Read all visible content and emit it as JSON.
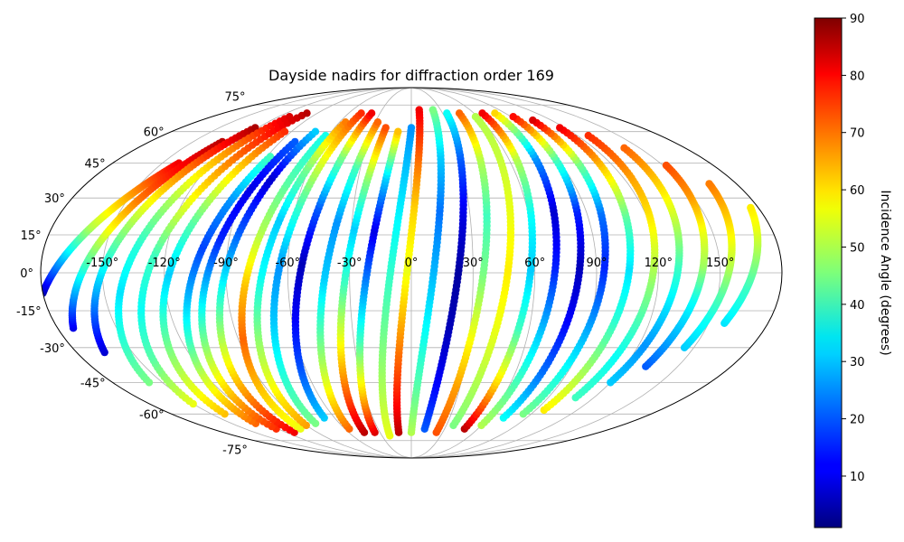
{
  "chart_data": {
    "type": "scatter",
    "projection": "mollweide",
    "title": "Dayside nadirs for diffraction order 169",
    "x_ticks": [
      "-150°",
      "-120°",
      "-90°",
      "-60°",
      "-30°",
      "0°",
      "30°",
      "60°",
      "90°",
      "120°",
      "150°"
    ],
    "x_tick_values": [
      -150,
      -120,
      -90,
      -60,
      -30,
      0,
      30,
      60,
      90,
      120,
      150
    ],
    "y_ticks": [
      "-75°",
      "-60°",
      "-45°",
      "-30°",
      "-15°",
      "0°",
      "15°",
      "30°",
      "45°",
      "60°",
      "75°"
    ],
    "y_tick_values": [
      -75,
      -60,
      -45,
      -30,
      -15,
      0,
      15,
      30,
      45,
      60,
      75
    ],
    "grid": true,
    "colormap": "jet",
    "colorbar": {
      "label": "Incidence Angle (degrees)",
      "min": 1,
      "max": 90,
      "ticks": [
        "10",
        "20",
        "30",
        "40",
        "50",
        "60",
        "70",
        "80",
        "90"
      ],
      "tick_values": [
        10,
        20,
        30,
        40,
        50,
        60,
        70,
        80,
        90
      ]
    },
    "lat_range": [
      -72,
      72
    ],
    "series": [
      {
        "lon0": -180,
        "lat0": -8,
        "lon1": -140,
        "lat1": 45,
        "angles": [
          5,
          20,
          35,
          50,
          60,
          70,
          80
        ]
      },
      {
        "lon0": -172,
        "lat0": -22,
        "lon1": -130,
        "lat1": 55,
        "angles": [
          10,
          25,
          40,
          55,
          68,
          78,
          85
        ]
      },
      {
        "lon0": -165,
        "lat0": -32,
        "lon1": -122,
        "lat1": 62,
        "angles": [
          8,
          20,
          32,
          45,
          58,
          72,
          86
        ]
      },
      {
        "lon0": -158,
        "lat0": -45,
        "lon1": -110,
        "lat1": 68,
        "angles": [
          45,
          38,
          32,
          38,
          50,
          65,
          82
        ]
      },
      {
        "lon0": -150,
        "lat0": -55,
        "lon1": -100,
        "lat1": 70,
        "angles": [
          55,
          42,
          35,
          40,
          55,
          70,
          85
        ]
      },
      {
        "lon0": -140,
        "lat0": -60,
        "lon1": -95,
        "lat1": 60,
        "angles": [
          62,
          50,
          40,
          30,
          42,
          58,
          75
        ]
      },
      {
        "lon0": -130,
        "lat0": -65,
        "lon1": -88,
        "lat1": 48,
        "angles": [
          70,
          55,
          40,
          28,
          18,
          25,
          40
        ]
      },
      {
        "lon0": -122,
        "lat0": -68,
        "lon1": -80,
        "lat1": 55,
        "angles": [
          75,
          60,
          45,
          30,
          15,
          10,
          20
        ]
      },
      {
        "lon0": -112,
        "lat0": -70,
        "lon1": -72,
        "lat1": 60,
        "angles": [
          80,
          65,
          50,
          35,
          20,
          8,
          30
        ]
      },
      {
        "lon0": -100,
        "lat0": -68,
        "lon1": -62,
        "lat1": 58,
        "angles": [
          55,
          62,
          70,
          62,
          50,
          42,
          36
        ]
      },
      {
        "lon0": -90,
        "lat0": -66,
        "lon1": -55,
        "lat1": 65,
        "angles": [
          65,
          55,
          45,
          35,
          30,
          45,
          68
        ]
      },
      {
        "lon0": -80,
        "lat0": -65,
        "lon1": -48,
        "lat1": 70,
        "angles": [
          45,
          38,
          30,
          25,
          38,
          55,
          75
        ]
      },
      {
        "lon0": -68,
        "lat0": -62,
        "lon1": -38,
        "lat1": 70,
        "angles": [
          30,
          20,
          12,
          6,
          20,
          45,
          80
        ]
      },
      {
        "lon0": -56,
        "lat0": -68,
        "lon1": -28,
        "lat1": 65,
        "angles": [
          70,
          55,
          42,
          30,
          25,
          40,
          70
        ]
      },
      {
        "lon0": -45,
        "lat0": -70,
        "lon1": -20,
        "lat1": 62,
        "angles": [
          85,
          70,
          55,
          40,
          30,
          48,
          72
        ]
      },
      {
        "lon0": -35,
        "lat0": -70,
        "lon1": -10,
        "lat1": 60,
        "angles": [
          82,
          60,
          40,
          25,
          10,
          30,
          62
        ]
      },
      {
        "lon0": -22,
        "lat0": -72,
        "lon1": 0,
        "lat1": 62,
        "angles": [
          55,
          50,
          45,
          40,
          35,
          30,
          25
        ]
      },
      {
        "lon0": -12,
        "lat0": -70,
        "lon1": 8,
        "lat1": 72,
        "angles": [
          85,
          75,
          65,
          55,
          60,
          70,
          80
        ]
      },
      {
        "lon0": 0,
        "lat0": -70,
        "lon1": 22,
        "lat1": 72,
        "angles": [
          50,
          42,
          35,
          28,
          22,
          30,
          45
        ]
      },
      {
        "lon0": 12,
        "lat0": -68,
        "lon1": 34,
        "lat1": 70,
        "angles": [
          20,
          12,
          6,
          4,
          10,
          20,
          35
        ]
      },
      {
        "lon0": 24,
        "lat0": -70,
        "lon1": 46,
        "lat1": 70,
        "angles": [
          72,
          65,
          55,
          45,
          40,
          50,
          70
        ]
      },
      {
        "lon0": 36,
        "lat0": -66,
        "lon1": 58,
        "lat1": 68,
        "angles": [
          45,
          50,
          55,
          58,
          55,
          52,
          50
        ]
      },
      {
        "lon0": 48,
        "lat0": -68,
        "lon1": 68,
        "lat1": 70,
        "angles": [
          85,
          60,
          40,
          30,
          35,
          50,
          80
        ]
      },
      {
        "lon0": 60,
        "lat0": -66,
        "lon1": 80,
        "lat1": 70,
        "angles": [
          50,
          40,
          28,
          15,
          8,
          25,
          60
        ]
      },
      {
        "lon0": 72,
        "lat0": -62,
        "lon1": 92,
        "lat1": 68,
        "angles": [
          35,
          22,
          12,
          6,
          15,
          40,
          78
        ]
      },
      {
        "lon0": 84,
        "lat0": -60,
        "lon1": 104,
        "lat1": 66,
        "angles": [
          45,
          35,
          25,
          15,
          22,
          45,
          82
        ]
      },
      {
        "lon0": 96,
        "lat0": -58,
        "lon1": 116,
        "lat1": 62,
        "angles": [
          58,
          48,
          38,
          32,
          42,
          60,
          80
        ]
      },
      {
        "lon0": 108,
        "lat0": -52,
        "lon1": 128,
        "lat1": 58,
        "angles": [
          40,
          35,
          42,
          50,
          58,
          65,
          75
        ]
      },
      {
        "lon0": 120,
        "lat0": -45,
        "lon1": 140,
        "lat1": 52,
        "angles": [
          30,
          25,
          32,
          40,
          50,
          60,
          70
        ]
      },
      {
        "lon0": 132,
        "lat0": -38,
        "lon1": 152,
        "lat1": 44,
        "angles": [
          20,
          28,
          35,
          48,
          55,
          65,
          72
        ]
      },
      {
        "lon0": 145,
        "lat0": -30,
        "lon1": 165,
        "lat1": 36,
        "angles": [
          30,
          35,
          42,
          50,
          56,
          62,
          68
        ]
      },
      {
        "lon0": 158,
        "lat0": -20,
        "lon1": 176,
        "lat1": 26,
        "angles": [
          32,
          36,
          40,
          45,
          50,
          55,
          58
        ]
      }
    ]
  }
}
